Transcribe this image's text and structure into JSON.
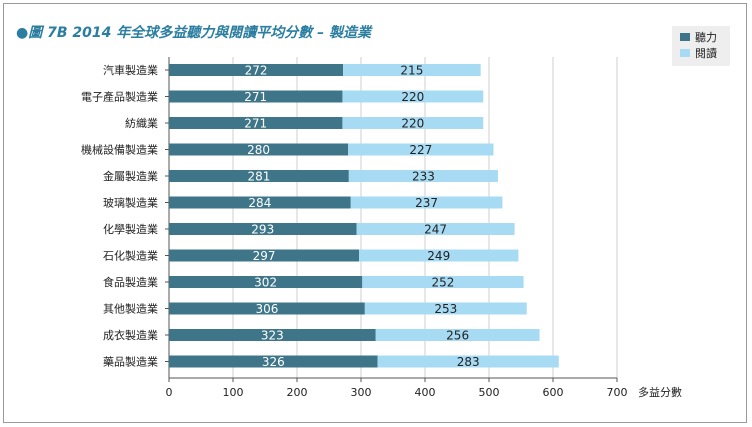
{
  "title": {
    "bullet": "●",
    "text": "圖 7B   2014 年全球多益聽力與閱讀平均分數 – 製造業"
  },
  "legend": {
    "items": [
      {
        "label": "聽力",
        "color": "#3e7589"
      },
      {
        "label": "閱讀",
        "color": "#a7dbf4"
      }
    ]
  },
  "chart_data": {
    "type": "bar",
    "orientation": "horizontal",
    "stacked": true,
    "title": "圖 7B   2014 年全球多益聽力與閱讀平均分數 – 製造業",
    "xlabel": "多益分數",
    "ylabel": "",
    "xlim": [
      0,
      700
    ],
    "xticks": [
      0,
      100,
      200,
      300,
      400,
      500,
      600,
      700
    ],
    "grid": "vertical",
    "legend_position": "top-right",
    "categories": [
      "汽車製造業",
      "電子產品製造業",
      "紡織業",
      "機械設備製造業",
      "金屬製造業",
      "玻璃製造業",
      "化學製造業",
      "石化製造業",
      "食品製造業",
      "其他製造業",
      "成衣製造業",
      "藥品製造業"
    ],
    "series": [
      {
        "name": "聽力",
        "color": "#3e7589",
        "values": [
          272,
          271,
          271,
          280,
          281,
          284,
          293,
          297,
          302,
          306,
          323,
          326
        ]
      },
      {
        "name": "閱讀",
        "color": "#a7dbf4",
        "values": [
          215,
          220,
          220,
          227,
          233,
          237,
          247,
          249,
          252,
          253,
          256,
          283
        ]
      }
    ]
  }
}
